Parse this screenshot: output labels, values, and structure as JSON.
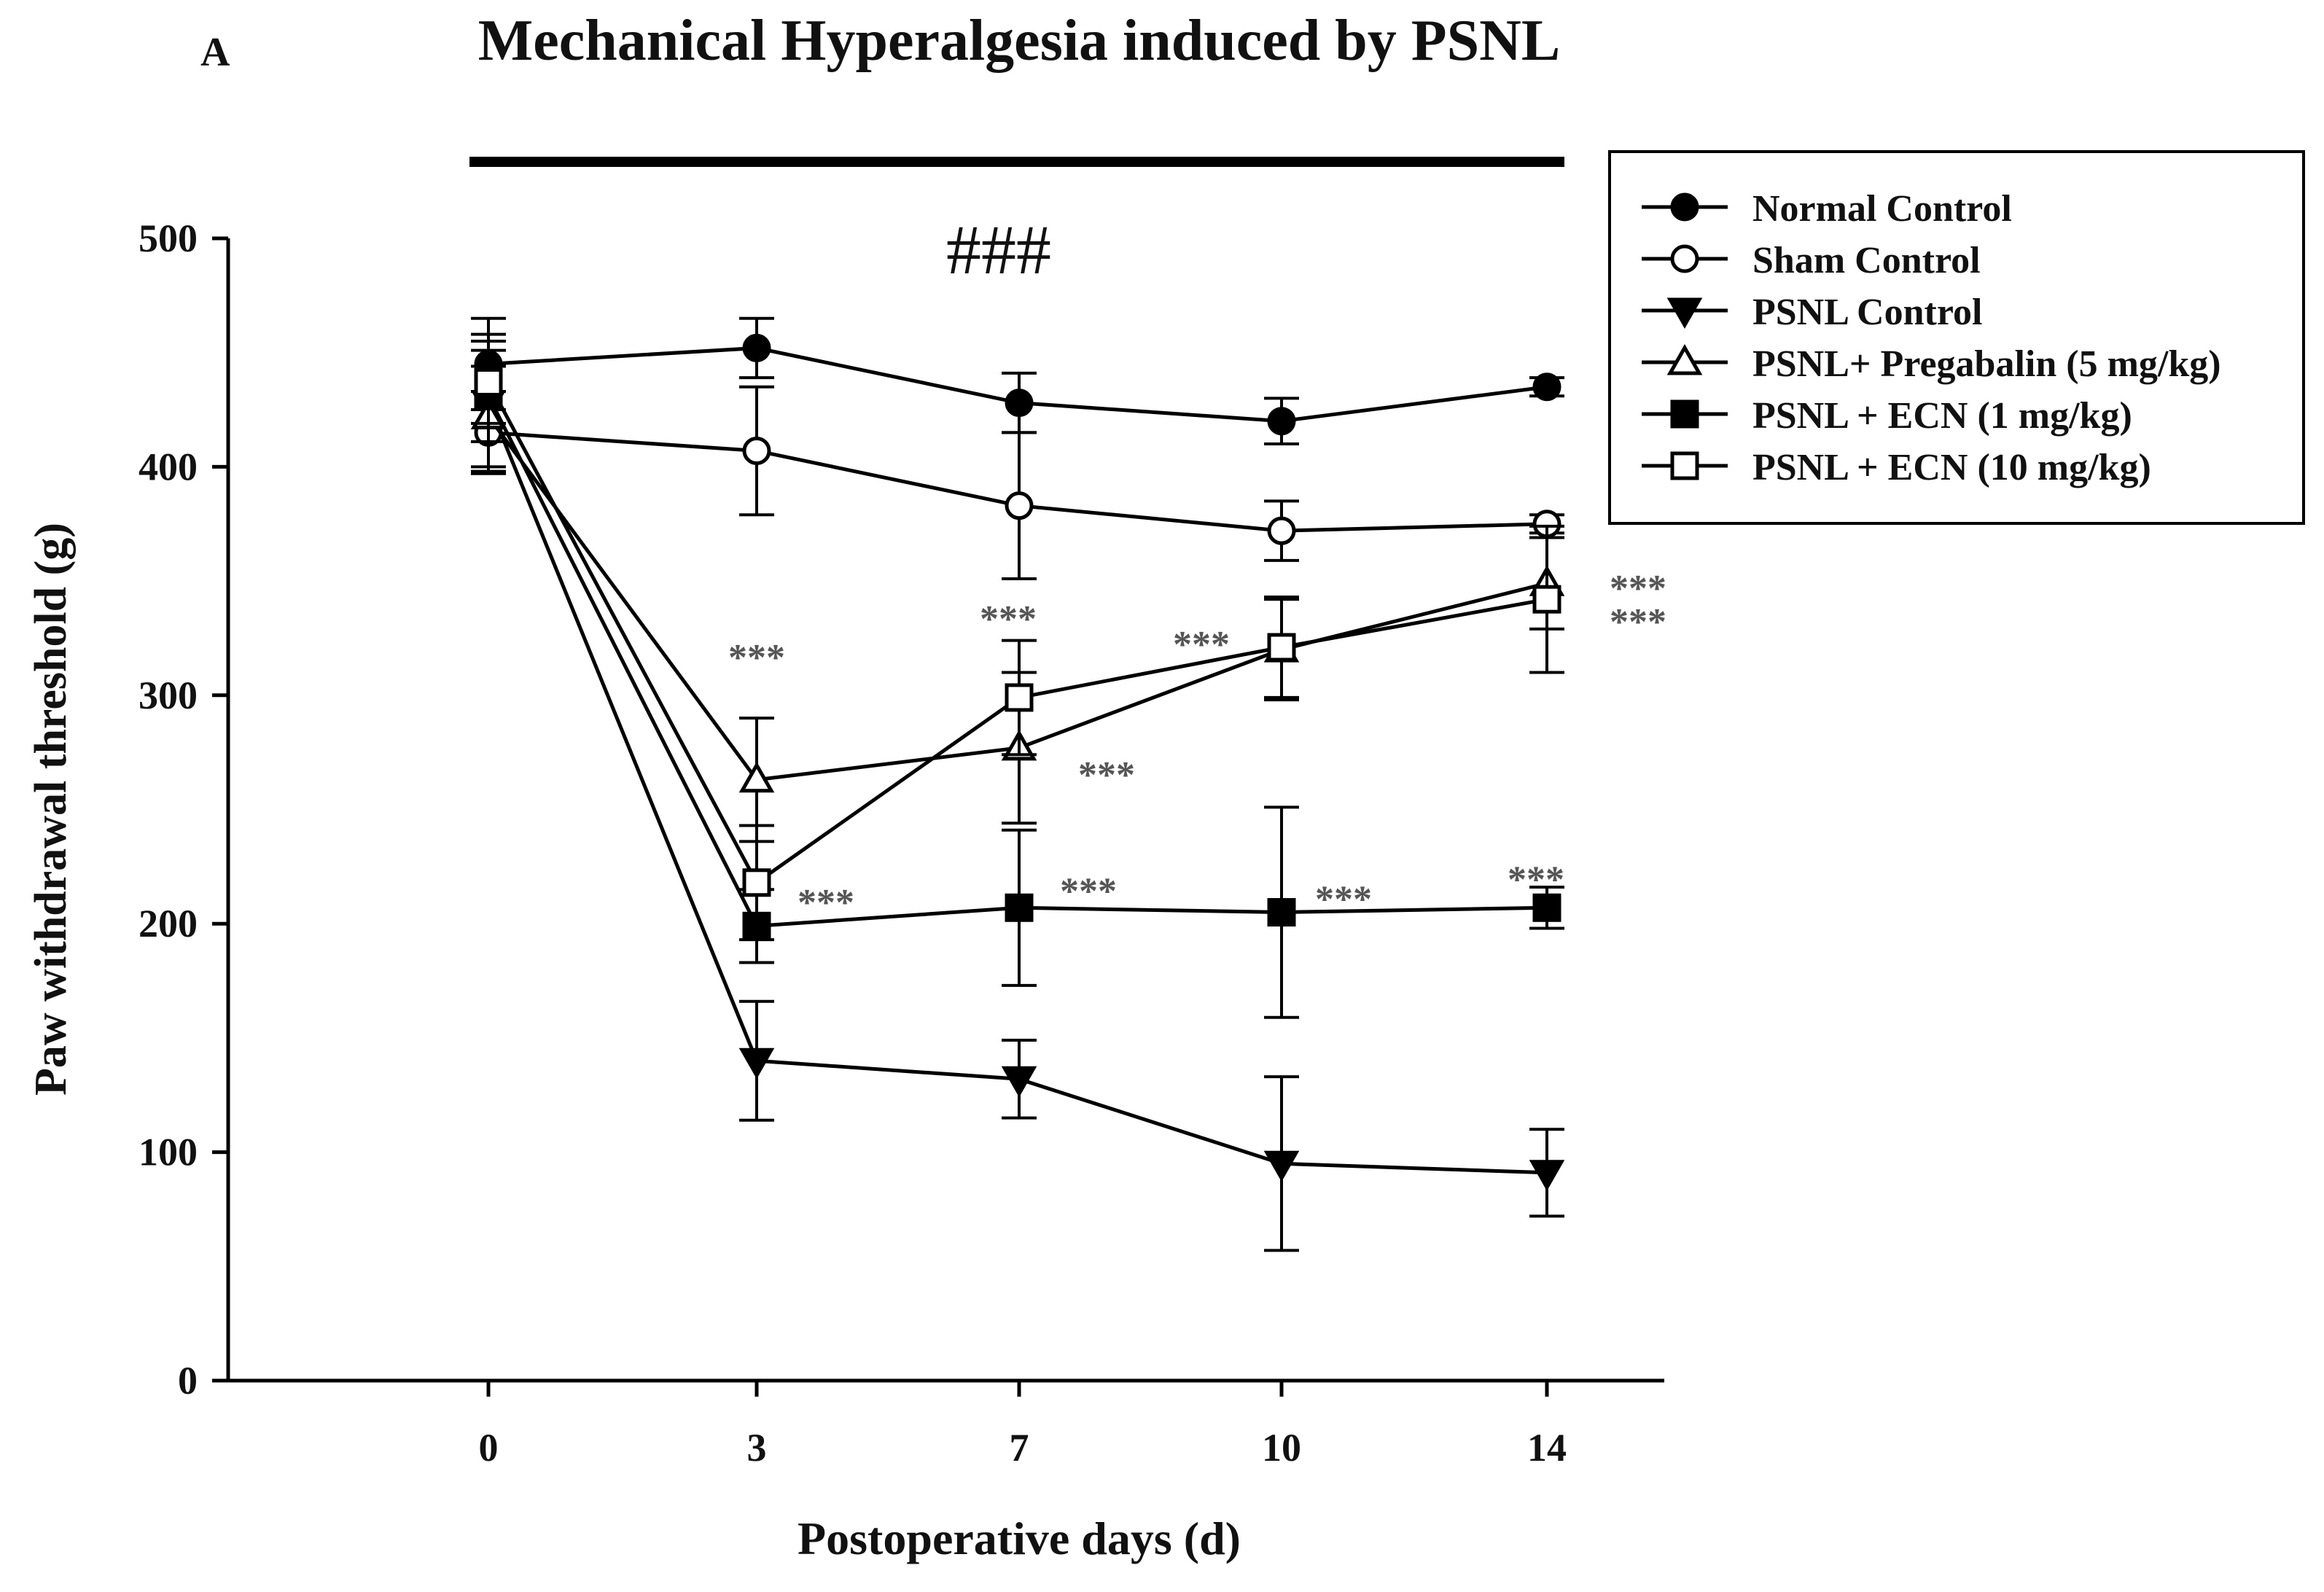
{
  "panel_label": "A",
  "chart_data": {
    "type": "line",
    "title": "Mechanical Hyperalgesia induced by PSNL",
    "xlabel": "Postoperative days (d)",
    "ylabel": "Paw withdrawal threshold (g)",
    "categories": [
      "0",
      "3",
      "7",
      "10",
      "14"
    ],
    "ylim": [
      0,
      500
    ],
    "yticks": [
      0,
      100,
      200,
      300,
      400,
      500
    ],
    "grid": false,
    "legend_position": "top-right",
    "significance_bar_label": "###",
    "series": [
      {
        "name": "Normal Control",
        "marker": "circle",
        "filled": true,
        "values": [
          445,
          452,
          428,
          420,
          435
        ],
        "errors": [
          20,
          13,
          13,
          10,
          4
        ]
      },
      {
        "name": "Sham Control",
        "marker": "circle",
        "filled": false,
        "values": [
          415,
          407,
          383,
          372,
          375
        ],
        "errors": [
          18,
          28,
          32,
          13,
          4
        ]
      },
      {
        "name": "PSNL Control",
        "marker": "triangle-down",
        "filled": true,
        "values": [
          428,
          140,
          132,
          95,
          91
        ],
        "errors": [
          30,
          26,
          17,
          38,
          19
        ]
      },
      {
        "name": "PSNL+ Pregabalin (5 mg/kg)",
        "marker": "triangle-up",
        "filled": false,
        "values": [
          422,
          263,
          277,
          320,
          349
        ],
        "errors": [
          22,
          27,
          33,
          22,
          20
        ]
      },
      {
        "name": "PSNL + ECN (1 mg/kg)",
        "marker": "square",
        "filled": true,
        "values": [
          431,
          199,
          207,
          205,
          207
        ],
        "errors": [
          20,
          16,
          34,
          46,
          9
        ]
      },
      {
        "name": "PSNL + ECN (10 mg/kg)",
        "marker": "square",
        "filled": false,
        "values": [
          437,
          218,
          299,
          321,
          342
        ],
        "errors": [
          18,
          25,
          25,
          22,
          32
        ]
      }
    ],
    "annotations": [
      {
        "text": "***",
        "x_index": 1,
        "series": "PSNL+ Pregabalin (5 mg/kg)",
        "note": "above day 3"
      },
      {
        "text": "***",
        "x_index": 1,
        "series": "PSNL + ECN (10 mg/kg)",
        "note": "right of day 3"
      },
      {
        "text": "***",
        "x_index": 2,
        "series": "PSNL + ECN (10 mg/kg)",
        "note": "above day 7"
      },
      {
        "text": "***",
        "x_index": 2,
        "series": "PSNL+ Pregabalin (5 mg/kg)",
        "note": "right of day 7"
      },
      {
        "text": "***",
        "x_index": 2,
        "series": "PSNL + ECN (1 mg/kg)",
        "note": "right of day 7"
      },
      {
        "text": "***",
        "x_index": 3,
        "series": "PSNL+ Pregabalin (5 mg/kg)",
        "note": "left of day 10"
      },
      {
        "text": "***",
        "x_index": 3,
        "series": "PSNL + ECN (1 mg/kg)",
        "note": "right of day 10"
      },
      {
        "text": "***",
        "x_index": 4,
        "series": "PSNL+ Pregabalin (5 mg/kg)",
        "note": "right of day 14"
      },
      {
        "text": "***",
        "x_index": 4,
        "series": "PSNL + ECN (10 mg/kg)",
        "note": "right of day 14"
      },
      {
        "text": "***",
        "x_index": 4,
        "series": "PSNL + ECN (1 mg/kg)",
        "note": "above day 14"
      }
    ]
  }
}
